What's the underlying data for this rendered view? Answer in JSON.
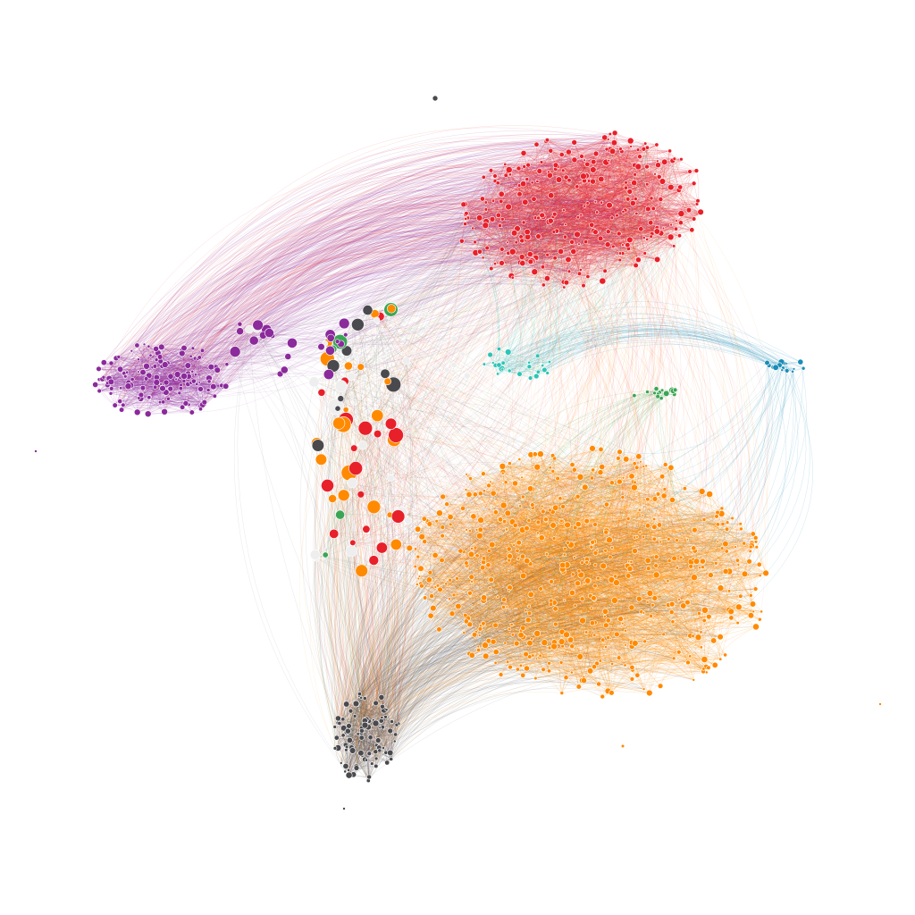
{
  "graph": {
    "background": "#ffffff",
    "communities": [
      {
        "id": "red",
        "color": "#e8202a",
        "nodes": 260
      },
      {
        "id": "orange",
        "color": "#ff8a00",
        "nodes": 520
      },
      {
        "id": "purple",
        "color": "#8b2a9b",
        "nodes": 130
      },
      {
        "id": "gray",
        "color": "#4a4a4e",
        "nodes": 90
      },
      {
        "id": "teal",
        "color": "#2ec4b6",
        "nodes": 24
      },
      {
        "id": "blue",
        "color": "#1a8db6",
        "nodes": 16
      },
      {
        "id": "green",
        "color": "#3aa655",
        "nodes": 14
      },
      {
        "id": "white",
        "color": "#eeeeee",
        "nodes": 30
      }
    ],
    "labels_visible": false,
    "legend_visible": false
  }
}
